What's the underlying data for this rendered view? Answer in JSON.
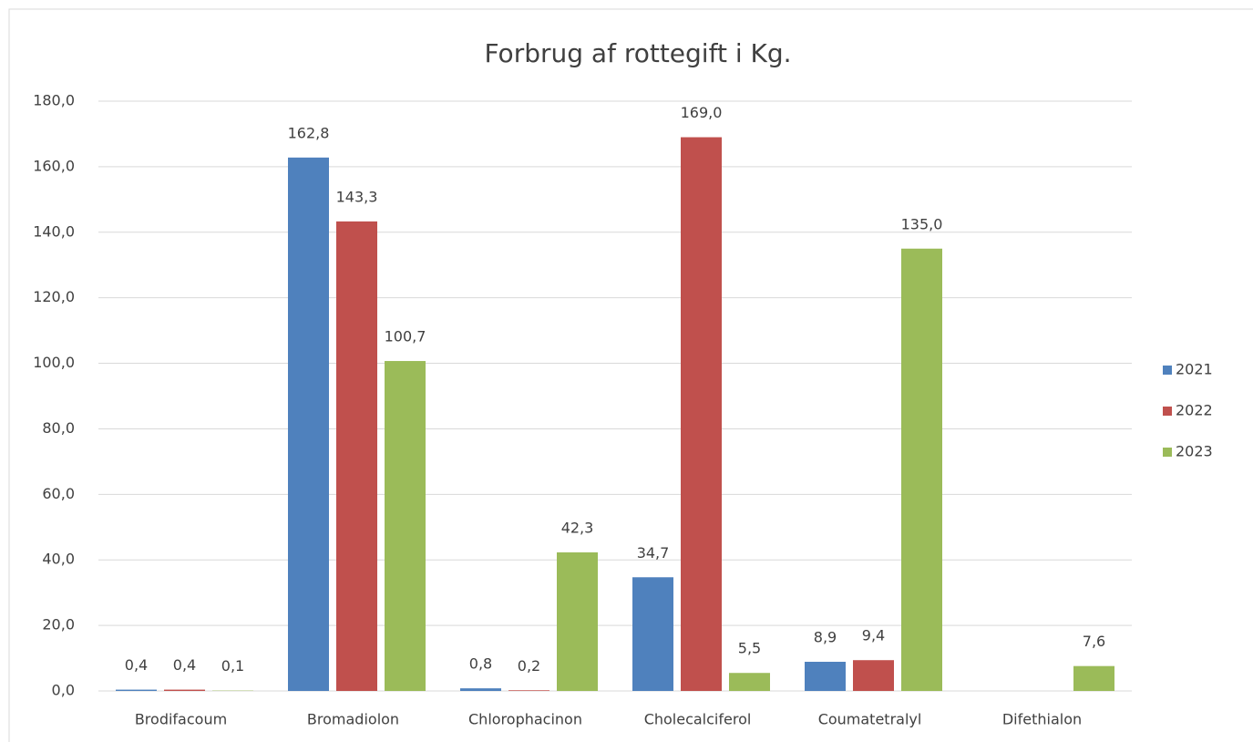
{
  "chart_data": {
    "type": "bar",
    "title": "Forbrug af rottegift i Kg.",
    "categories": [
      "Brodifacoum",
      "Bromadiolon",
      "Chlorophacinon",
      "Cholecalciferol",
      "Coumatetralyl",
      "Difethialon"
    ],
    "series": [
      {
        "name": "2021",
        "color": "#4f81bd",
        "values": [
          0.4,
          162.8,
          0.8,
          34.7,
          8.9,
          null
        ],
        "value_labels": [
          "0,4",
          "162,8",
          "0,8",
          "34,7",
          "8,9",
          null
        ]
      },
      {
        "name": "2022",
        "color": "#c0504d",
        "values": [
          0.4,
          143.3,
          0.2,
          169.0,
          9.4,
          null
        ],
        "value_labels": [
          "0,4",
          "143,3",
          "0,2",
          "169,0",
          "9,4",
          null
        ]
      },
      {
        "name": "2023",
        "color": "#9bbb59",
        "values": [
          0.1,
          100.7,
          42.3,
          5.5,
          135.0,
          7.6
        ],
        "value_labels": [
          "0,1",
          "100,7",
          "42,3",
          "5,5",
          "135,0",
          "7,6"
        ]
      }
    ],
    "ylim": [
      0,
      180
    ],
    "yticks": [
      {
        "value": 0,
        "label": "0,0"
      },
      {
        "value": 20,
        "label": "20,0"
      },
      {
        "value": 40,
        "label": "40,0"
      },
      {
        "value": 60,
        "label": "60,0"
      },
      {
        "value": 80,
        "label": "80,0"
      },
      {
        "value": 100,
        "label": "100,0"
      },
      {
        "value": 120,
        "label": "120,0"
      },
      {
        "value": 140,
        "label": "140,0"
      },
      {
        "value": 160,
        "label": "160,0"
      },
      {
        "value": 180,
        "label": "180,0"
      }
    ],
    "grid": true,
    "legend": "right"
  }
}
